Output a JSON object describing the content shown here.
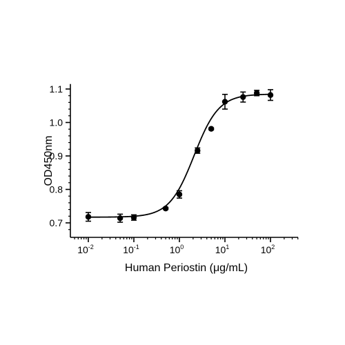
{
  "chart_data": {
    "type": "scatter",
    "x_scale": "log",
    "xlabel": "Human Periostin (μg/mL)",
    "ylabel": "OD450nm",
    "ylim": [
      0.66,
      1.115
    ],
    "xlim": [
      0.005,
      250
    ],
    "xticks": [
      {
        "value": 0.01,
        "base": "10",
        "exp": "-2"
      },
      {
        "value": 0.1,
        "base": "10",
        "exp": "-1"
      },
      {
        "value": 1,
        "base": "10",
        "exp": "0"
      },
      {
        "value": 10,
        "base": "10",
        "exp": "1"
      },
      {
        "value": 100,
        "base": "10",
        "exp": "2"
      }
    ],
    "yticks": [
      {
        "value": 0.7,
        "label": "0.7"
      },
      {
        "value": 0.8,
        "label": "0.8"
      },
      {
        "value": 0.9,
        "label": "0.9"
      },
      {
        "value": 1.0,
        "label": "1.0"
      },
      {
        "value": 1.1,
        "label": "1.1"
      }
    ],
    "points": [
      {
        "x": 0.01,
        "y": 0.718,
        "err": 0.013
      },
      {
        "x": 0.05,
        "y": 0.714,
        "err": 0.012
      },
      {
        "x": 0.1,
        "y": 0.716,
        "err": 0.008
      },
      {
        "x": 0.5,
        "y": 0.743,
        "err": 0.003
      },
      {
        "x": 1,
        "y": 0.785,
        "err": 0.011
      },
      {
        "x": 2.5,
        "y": 0.916,
        "err": 0.008
      },
      {
        "x": 5,
        "y": 0.981,
        "err": 0.003
      },
      {
        "x": 10,
        "y": 1.062,
        "err": 0.022
      },
      {
        "x": 25,
        "y": 1.076,
        "err": 0.015
      },
      {
        "x": 50,
        "y": 1.088,
        "err": 0.008
      },
      {
        "x": 100,
        "y": 1.082,
        "err": 0.016
      }
    ],
    "curve": {
      "bottom": 0.717,
      "top": 1.085,
      "ec50": 2.1,
      "hill": 1.6
    },
    "color": "#000000",
    "grid": false
  }
}
